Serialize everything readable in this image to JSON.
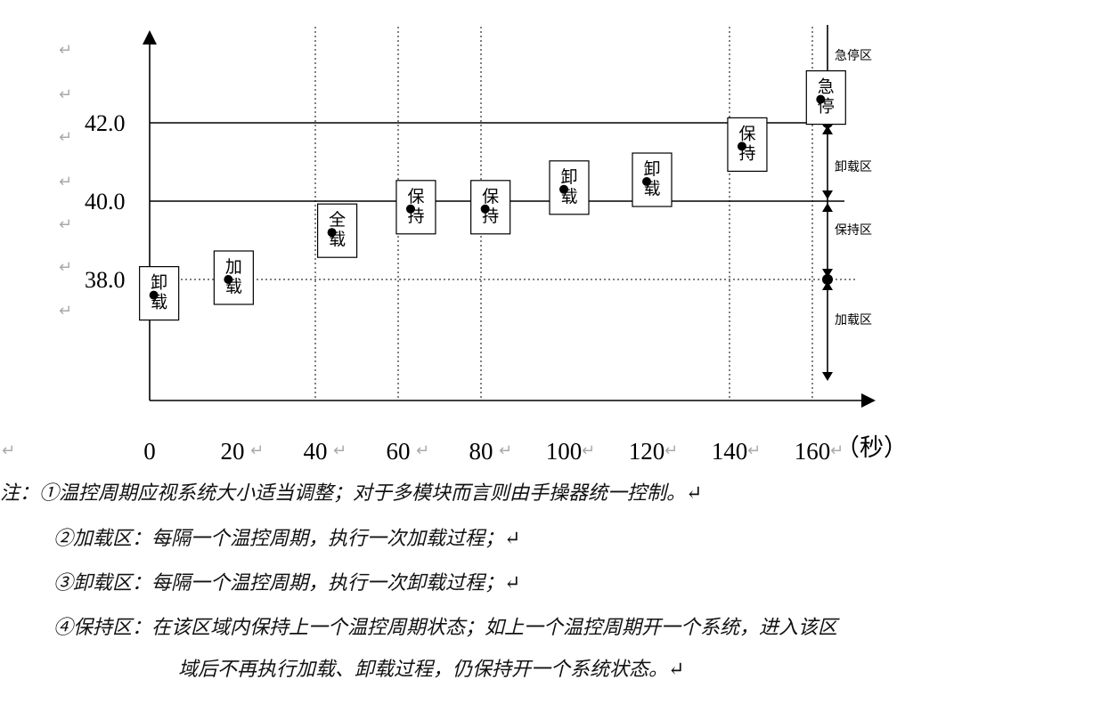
{
  "chart_data": {
    "type": "scatter",
    "x_ticks": [
      "0",
      "20",
      "40",
      "60",
      "80",
      "100",
      "120",
      "140",
      "160"
    ],
    "x_unit": "（秒）",
    "y_ticks": [
      "38.0",
      "40.0",
      "42.0"
    ],
    "ylim": [
      35.0,
      43.0
    ],
    "xlim": [
      0,
      178
    ],
    "vgrid_x": [
      40,
      60,
      80,
      140,
      160
    ],
    "hlines": [
      38.0,
      40.0,
      42.0
    ],
    "points": [
      {
        "x": 1,
        "y": 37.6,
        "label": "卸\n载"
      },
      {
        "x": 19,
        "y": 38.0,
        "label": "加\n载"
      },
      {
        "x": 44,
        "y": 39.2,
        "label": "全\n载"
      },
      {
        "x": 63,
        "y": 39.8,
        "label": "保\n持"
      },
      {
        "x": 81,
        "y": 39.8,
        "label": "保\n持"
      },
      {
        "x": 100,
        "y": 40.3,
        "label": "卸\n载"
      },
      {
        "x": 120,
        "y": 40.5,
        "label": "卸\n载"
      },
      {
        "x": 143,
        "y": 41.4,
        "label": "保\n持"
      },
      {
        "x": 162,
        "y": 42.6,
        "label": "急\n停"
      }
    ],
    "zones": [
      {
        "label": "急停区",
        "from": 42.0,
        "to": 43.8
      },
      {
        "label": "卸载区",
        "from": 40.0,
        "to": 42.0
      },
      {
        "label": "保持区",
        "from": 38.0,
        "to": 40.0
      },
      {
        "label": "加载区",
        "from": 35.5,
        "to": 38.0
      }
    ]
  },
  "notes": [
    "注：①温控周期应视系统大小适当调整；对于多模块而言则由手操器统一控制。↵",
    "②加载区：每隔一个温控周期，执行一次加载过程；↵",
    "③卸载区：每隔一个温控周期，执行一次卸载过程；↵",
    "④保持区：在该区域内保持上一个温控周期状态；如上一个温控周期开一个系统，进入该区",
    "域后不再执行加载、卸载过程，仍保持开一个系统状态。↵"
  ]
}
